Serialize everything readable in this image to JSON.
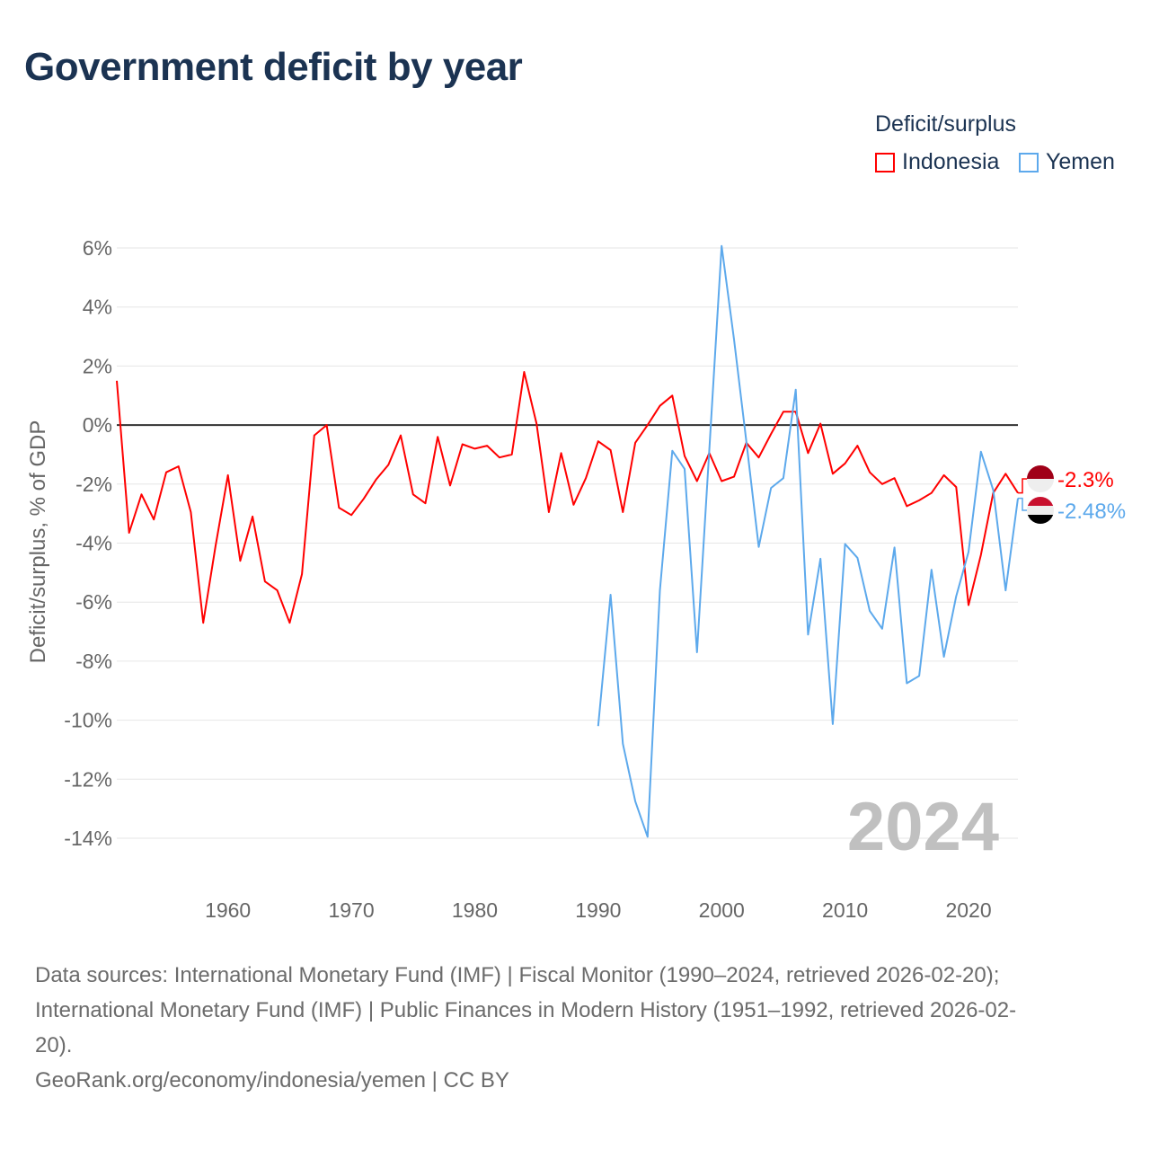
{
  "title": "Government deficit by year",
  "legend": {
    "title": "Deficit/surplus",
    "items": [
      {
        "label": "Indonesia",
        "color": "#ff0000"
      },
      {
        "label": "Yemen",
        "color": "#5da9ec"
      }
    ]
  },
  "watermark_year": "2024",
  "footer": {
    "line1": "Data sources: International Monetary Fund (IMF) | Fiscal Monitor (1990–2024, retrieved 2026-02-20);",
    "line2": "International Monetary Fund (IMF) | Public Finances in Modern History (1951–1992, retrieved 2026-02-",
    "line3": "20).",
    "line4": "GeoRank.org/economy/indonesia/yemen | CC BY"
  },
  "chart_data": {
    "type": "line",
    "title": "Government deficit by year",
    "xlabel": "",
    "ylabel": "Deficit/surplus, % of GDP",
    "xlim": [
      1951,
      2024
    ],
    "ylim": [
      -14,
      6
    ],
    "yticks": [
      6,
      4,
      2,
      0,
      -2,
      -4,
      -6,
      -8,
      -10,
      -12,
      -14
    ],
    "ytick_labels": [
      "6%",
      "4%",
      "2%",
      "0%",
      "-2%",
      "-4%",
      "-6%",
      "-8%",
      "-10%",
      "-12%",
      "-14%"
    ],
    "xticks": [
      1960,
      1970,
      1980,
      1990,
      2000,
      2010,
      2020
    ],
    "xtick_labels": [
      "1960",
      "1970",
      "1980",
      "1990",
      "2000",
      "2010",
      "2020"
    ],
    "grid": true,
    "legend_position": "top-right",
    "series": [
      {
        "name": "Indonesia",
        "color": "#ff0000",
        "end_label": "-2.3%",
        "x_start": 1951,
        "values": [
          1.5,
          -3.65,
          -2.35,
          -3.2,
          -1.6,
          -1.4,
          -2.95,
          -6.7,
          -4.1,
          -1.7,
          -4.6,
          -3.1,
          -5.3,
          -5.6,
          -6.7,
          -5.05,
          -0.35,
          0,
          -2.8,
          -3.05,
          -2.5,
          -1.85,
          -1.35,
          -0.35,
          -2.35,
          -2.65,
          -0.4,
          -2.05,
          -0.65,
          -0.8,
          -0.7,
          -1.1,
          -1.0,
          1.8,
          0.05,
          -2.95,
          -0.95,
          -2.7,
          -1.8,
          -0.55,
          -0.85,
          -2.95,
          -0.6,
          0,
          0.65,
          1.0,
          -1.05,
          -1.9,
          -0.95,
          -1.9,
          -1.75,
          -0.6,
          -1.1,
          -0.3,
          0.45,
          0.45,
          -0.95,
          0.05,
          -1.65,
          -1.3,
          -0.7,
          -1.6,
          -2.0,
          -1.8,
          -2.75,
          -2.55,
          -2.3,
          -1.7,
          -2.1,
          -6.1,
          -4.4,
          -2.3,
          -1.65,
          -2.3
        ]
      },
      {
        "name": "Yemen",
        "color": "#5da9ec",
        "end_label": "-2.48%",
        "x_start": 1990,
        "values": [
          -10.2,
          -5.75,
          -10.8,
          -12.75,
          -13.95,
          -5.6,
          -0.87,
          -1.49,
          -7.7,
          -0.84,
          6.07,
          2.9,
          -0.55,
          -4.13,
          -2.13,
          -1.8,
          1.2,
          -7.1,
          -4.53,
          -10.13,
          -4.03,
          -4.5,
          -6.3,
          -6.9,
          -4.15,
          -8.75,
          -8.5,
          -4.9,
          -7.85,
          -5.8,
          -4.3,
          -0.9,
          -2.2,
          -5.6,
          -2.48
        ]
      }
    ]
  }
}
